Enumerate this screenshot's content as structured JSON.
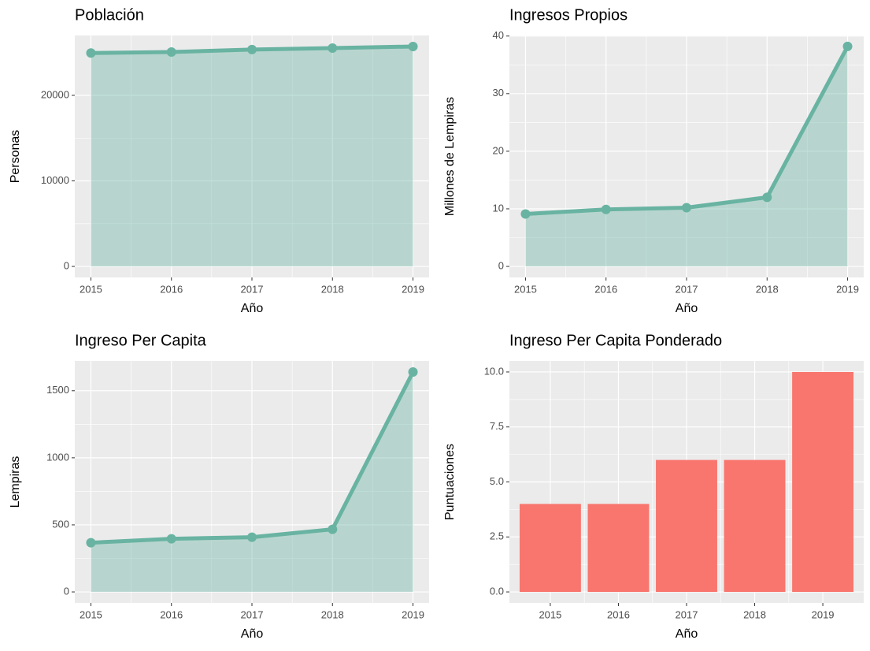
{
  "chart_data": [
    {
      "type": "line",
      "title": "Población",
      "x_label": "Año",
      "y_label": "Personas",
      "x": [
        2015,
        2016,
        2017,
        2018,
        2019
      ],
      "values": [
        24950,
        25070,
        25350,
        25530,
        25710
      ],
      "color": "#69b3a2",
      "xlim": [
        2014.8,
        2019.2
      ],
      "xticks": [
        2015,
        2016,
        2017,
        2018,
        2019
      ],
      "ylim": [
        -1285,
        27000
      ],
      "yticks": [
        0,
        10000,
        20000
      ],
      "grid": true
    },
    {
      "type": "line",
      "title": "Ingresos Propios",
      "x_label": "Año",
      "y_label": "Millones de Lempiras",
      "x": [
        2015,
        2016,
        2017,
        2018,
        2019
      ],
      "values": [
        9.1,
        9.9,
        10.2,
        12.0,
        38.2
      ],
      "color": "#69b3a2",
      "xlim": [
        2014.8,
        2019.2
      ],
      "xticks": [
        2015,
        2016,
        2017,
        2018,
        2019
      ],
      "ylim": [
        -1.91,
        40.1
      ],
      "yticks": [
        0,
        10,
        20,
        30,
        40
      ],
      "grid": true
    },
    {
      "type": "line",
      "title": "Ingreso Per Capita",
      "x_label": "Año",
      "y_label": "Lempiras",
      "x": [
        2015,
        2016,
        2017,
        2018,
        2019
      ],
      "values": [
        367,
        396,
        408,
        467,
        1640
      ],
      "color": "#69b3a2",
      "xlim": [
        2014.8,
        2019.2
      ],
      "xticks": [
        2015,
        2016,
        2017,
        2018,
        2019
      ],
      "ylim": [
        -82,
        1722
      ],
      "yticks": [
        0,
        500,
        1000,
        1500
      ],
      "grid": true
    },
    {
      "type": "bar",
      "title": "Ingreso Per Capita Ponderado",
      "x_label": "Año",
      "y_label": "Puntuaciones",
      "categories": [
        "2015",
        "2016",
        "2017",
        "2018",
        "2019"
      ],
      "values": [
        4,
        4,
        6,
        6,
        10
      ],
      "color": "#F8766D",
      "ylim": [
        -0.5,
        10.5
      ],
      "yticks": [
        {
          "value": 0,
          "label": "0.0"
        },
        {
          "value": 2.5,
          "label": "2.5"
        },
        {
          "value": 5,
          "label": "5.0"
        },
        {
          "value": 7.5,
          "label": "7.5"
        },
        {
          "value": 10,
          "label": "10.0"
        }
      ],
      "grid": true
    }
  ]
}
